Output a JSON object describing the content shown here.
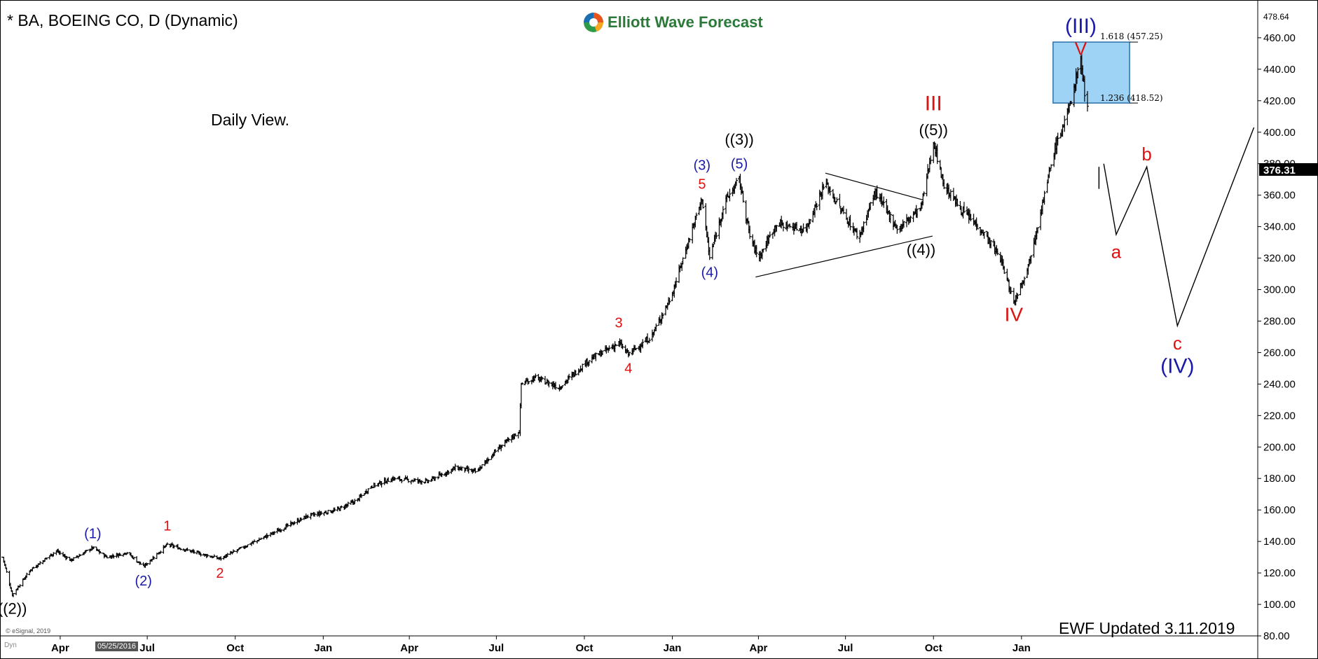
{
  "header": {
    "title": "* BA, BOEING CO, D (Dynamic)",
    "brand": "Elliott Wave Forecast",
    "subtitle": "Daily View.",
    "footer": "EWF  Updated 3.11.2019",
    "copyright": "© eSignal, 2019",
    "dyn": "Dyn",
    "cursor_date": "05/25/2016"
  },
  "colors": {
    "red": "#e01010",
    "blue": "#1a1aa8",
    "black": "#000000",
    "box_fill": "#9fd3f5",
    "box_stroke": "#2b6fa8"
  },
  "chart_data": {
    "type": "ohlc",
    "title": "* BA, BOEING CO, D (Dynamic)",
    "ylim": [
      80,
      478.64
    ],
    "y_ticks": [
      80,
      100,
      120,
      140,
      160,
      180,
      200,
      220,
      240,
      260,
      280,
      300,
      320,
      340,
      360,
      380,
      400,
      420,
      440,
      460
    ],
    "y_tick_labels": [
      "80.00",
      "100.00",
      "120.00",
      "140.00",
      "160.00",
      "180.00",
      "200.00",
      "220.00",
      "240.00",
      "260.00",
      "280.00",
      "300.00",
      "320.00",
      "340.00",
      "360.00",
      "380.00",
      "400.00",
      "420.00",
      "440.00",
      "460.00"
    ],
    "top_label": "478.64",
    "last_price": "376.31",
    "x_tick_labels": [
      "Apr",
      "Jul",
      "Oct",
      "Jan",
      "Apr",
      "Jul",
      "Oct",
      "Jan",
      "Apr",
      "Jul",
      "Oct",
      "Jan"
    ],
    "x_tick_dates": [
      "2016-04-01",
      "2016-07-01",
      "2016-10-01",
      "2017-01-01",
      "2017-04-01",
      "2017-07-01",
      "2017-10-01",
      "2018-01-01",
      "2018-04-01",
      "2018-07-01",
      "2018-10-01",
      "2019-01-01"
    ],
    "x_start": "2016-02-01",
    "x_end": "2019-09-05",
    "price_path": [
      [
        "2016-02-01",
        130
      ],
      [
        "2016-02-11",
        106
      ],
      [
        "2016-03-01",
        122
      ],
      [
        "2016-03-28",
        134
      ],
      [
        "2016-04-12",
        128
      ],
      [
        "2016-05-05",
        136
      ],
      [
        "2016-05-20",
        130
      ],
      [
        "2016-06-10",
        133
      ],
      [
        "2016-06-27",
        124
      ],
      [
        "2016-07-22",
        138
      ],
      [
        "2016-08-20",
        133
      ],
      [
        "2016-09-15",
        129
      ],
      [
        "2016-10-15",
        138
      ],
      [
        "2016-11-15",
        147
      ],
      [
        "2016-12-15",
        156
      ],
      [
        "2017-01-15",
        160
      ],
      [
        "2017-02-05",
        166
      ],
      [
        "2017-02-20",
        175
      ],
      [
        "2017-03-15",
        180
      ],
      [
        "2017-04-20",
        178
      ],
      [
        "2017-05-20",
        187
      ],
      [
        "2017-06-10",
        184
      ],
      [
        "2017-07-01",
        198
      ],
      [
        "2017-07-25",
        210
      ],
      [
        "2017-07-27",
        240
      ],
      [
        "2017-08-10",
        244
      ],
      [
        "2017-09-05",
        238
      ],
      [
        "2017-10-05",
        255
      ],
      [
        "2017-11-06",
        266
      ],
      [
        "2017-11-16",
        259
      ],
      [
        "2017-12-10",
        270
      ],
      [
        "2017-12-31",
        296
      ],
      [
        "2018-01-20",
        335
      ],
      [
        "2018-02-01",
        358
      ],
      [
        "2018-02-09",
        320
      ],
      [
        "2018-02-25",
        356
      ],
      [
        "2018-03-12",
        370
      ],
      [
        "2018-03-23",
        334
      ],
      [
        "2018-04-01",
        320
      ],
      [
        "2018-04-20",
        342
      ],
      [
        "2018-05-20",
        338
      ],
      [
        "2018-06-10",
        368
      ],
      [
        "2018-06-25",
        352
      ],
      [
        "2018-07-15",
        333
      ],
      [
        "2018-08-01",
        362
      ],
      [
        "2018-08-25",
        338
      ],
      [
        "2018-09-05",
        345
      ],
      [
        "2018-09-18",
        352
      ],
      [
        "2018-10-01",
        394
      ],
      [
        "2018-10-12",
        366
      ],
      [
        "2018-10-30",
        351
      ],
      [
        "2018-11-20",
        338
      ],
      [
        "2018-12-10",
        320
      ],
      [
        "2018-12-24",
        292
      ],
      [
        "2019-01-08",
        315
      ],
      [
        "2019-01-25",
        360
      ],
      [
        "2019-02-05",
        390
      ],
      [
        "2019-02-20",
        415
      ],
      [
        "2019-03-01",
        440
      ],
      [
        "2019-03-04",
        446
      ],
      [
        "2019-03-08",
        425
      ],
      [
        "2019-03-11",
        416
      ]
    ],
    "fib_box": {
      "x_start": "2019-02-03",
      "x_end": "2019-04-24",
      "y_top": 457.25,
      "y_bottom": 418.52,
      "top_label": "1.618 (457.25)",
      "bottom_label": "1.236 (418.52)"
    },
    "triangle_lines": [
      {
        "x1": "2018-06-10",
        "y1": 374,
        "x2": "2018-09-20",
        "y2": 357
      },
      {
        "x1": "2018-03-29",
        "y1": 308,
        "x2": "2018-09-30",
        "y2": 334
      }
    ],
    "projection_path": [
      [
        "2019-03-28",
        380
      ],
      [
        "2019-04-10",
        335
      ],
      [
        "2019-05-12",
        378
      ],
      [
        "2019-06-13",
        277
      ],
      [
        "2019-09-01",
        403
      ]
    ],
    "last_bar": {
      "x": "2019-03-23",
      "y_high": 378,
      "y_low": 364
    },
    "annotations": [
      {
        "text": "((2))",
        "x": "2016-02-11",
        "y": 94,
        "color": "black",
        "size": 22
      },
      {
        "text": "(1)",
        "x": "2016-05-05",
        "y": 142,
        "color": "blue",
        "size": 20
      },
      {
        "text": "(2)",
        "x": "2016-06-27",
        "y": 112,
        "color": "blue",
        "size": 20
      },
      {
        "text": "1",
        "x": "2016-07-22",
        "y": 147,
        "color": "red",
        "size": 20
      },
      {
        "text": "2",
        "x": "2016-09-15",
        "y": 117,
        "color": "red",
        "size": 20
      },
      {
        "text": "3",
        "x": "2017-11-06",
        "y": 276,
        "color": "red",
        "size": 20
      },
      {
        "text": "4",
        "x": "2017-11-16",
        "y": 247,
        "color": "red",
        "size": 20
      },
      {
        "text": "5",
        "x": "2018-02-01",
        "y": 364,
        "color": "red",
        "size": 20
      },
      {
        "text": "(3)",
        "x": "2018-02-01",
        "y": 376,
        "color": "blue",
        "size": 20
      },
      {
        "text": "(5)",
        "x": "2018-03-12",
        "y": 377,
        "color": "blue",
        "size": 20
      },
      {
        "text": "((3))",
        "x": "2018-03-12",
        "y": 392,
        "color": "black",
        "size": 22
      },
      {
        "text": "(4)",
        "x": "2018-02-09",
        "y": 308,
        "color": "blue",
        "size": 20
      },
      {
        "text": "((4))",
        "x": "2018-09-18",
        "y": 322,
        "color": "black",
        "size": 22
      },
      {
        "text": "((5))",
        "x": "2018-10-01",
        "y": 398,
        "color": "black",
        "size": 22
      },
      {
        "text": "III",
        "x": "2018-10-01",
        "y": 414,
        "color": "red",
        "size": 30
      },
      {
        "text": "IV",
        "x": "2018-12-24",
        "y": 280,
        "color": "red",
        "size": 28
      },
      {
        "text": "V",
        "x": "2019-03-04",
        "y": 449,
        "color": "red",
        "size": 26
      },
      {
        "text": "(III)",
        "x": "2019-03-04",
        "y": 463,
        "color": "blue",
        "size": 30
      },
      {
        "text": "a",
        "x": "2019-04-10",
        "y": 320,
        "color": "red",
        "size": 26
      },
      {
        "text": "b",
        "x": "2019-05-12",
        "y": 382,
        "color": "red",
        "size": 26
      },
      {
        "text": "c",
        "x": "2019-06-13",
        "y": 262,
        "color": "red",
        "size": 26
      },
      {
        "text": "(IV)",
        "x": "2019-06-13",
        "y": 247,
        "color": "blue",
        "size": 30
      }
    ]
  }
}
